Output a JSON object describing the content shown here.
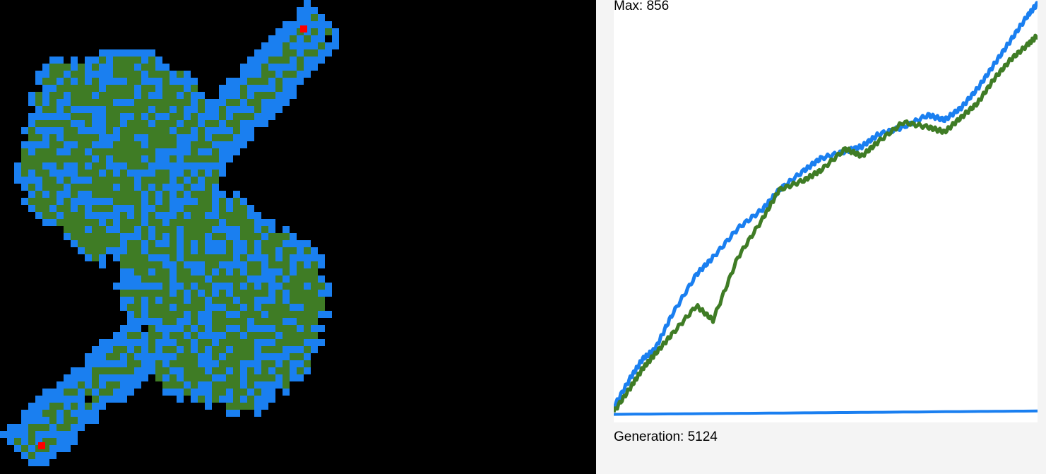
{
  "colors": {
    "background": "#000000",
    "green_cell": "#3f7c25",
    "blue_cell": "#1a7ff0",
    "red_cell": "#ff0000",
    "panel_bg": "#f4f4f4",
    "plot_bg": "#ffffff"
  },
  "readouts": {
    "max_label": "Max: 856",
    "generation_label": "Generation: 5124"
  },
  "chart_data": {
    "type": "line",
    "title": "",
    "xlabel": "",
    "ylabel": "",
    "xlim": [
      0,
      5124
    ],
    "ylim": [
      0,
      856
    ],
    "grid": false,
    "series": [
      {
        "color": "#1a7ff0",
        "x": [
          0,
          200,
          350,
          500,
          700,
          1000,
          1200,
          1500,
          1800,
          2000,
          2300,
          2500,
          2800,
          3000,
          3200,
          3500,
          3800,
          4000,
          4200,
          4400,
          4600,
          4800,
          5000,
          5124
        ],
        "y": [
          20,
          80,
          120,
          140,
          210,
          295,
          330,
          390,
          430,
          470,
          510,
          535,
          550,
          560,
          585,
          600,
          625,
          615,
          640,
          680,
          730,
          780,
          830,
          856
        ]
      },
      {
        "color": "#3f7c25",
        "x": [
          0,
          200,
          350,
          500,
          700,
          1000,
          1200,
          1500,
          1800,
          2000,
          2300,
          2500,
          2800,
          3000,
          3200,
          3500,
          3800,
          4000,
          4200,
          4400,
          4600,
          4800,
          5000,
          5124
        ],
        "y": [
          10,
          60,
          100,
          130,
          170,
          230,
          200,
          330,
          410,
          470,
          490,
          510,
          555,
          540,
          570,
          610,
          600,
          590,
          620,
          650,
          700,
          740,
          770,
          790
        ]
      },
      {
        "color": "#1a7ff0",
        "x": [
          0,
          5124
        ],
        "y": [
          5,
          12
        ]
      }
    ]
  }
}
